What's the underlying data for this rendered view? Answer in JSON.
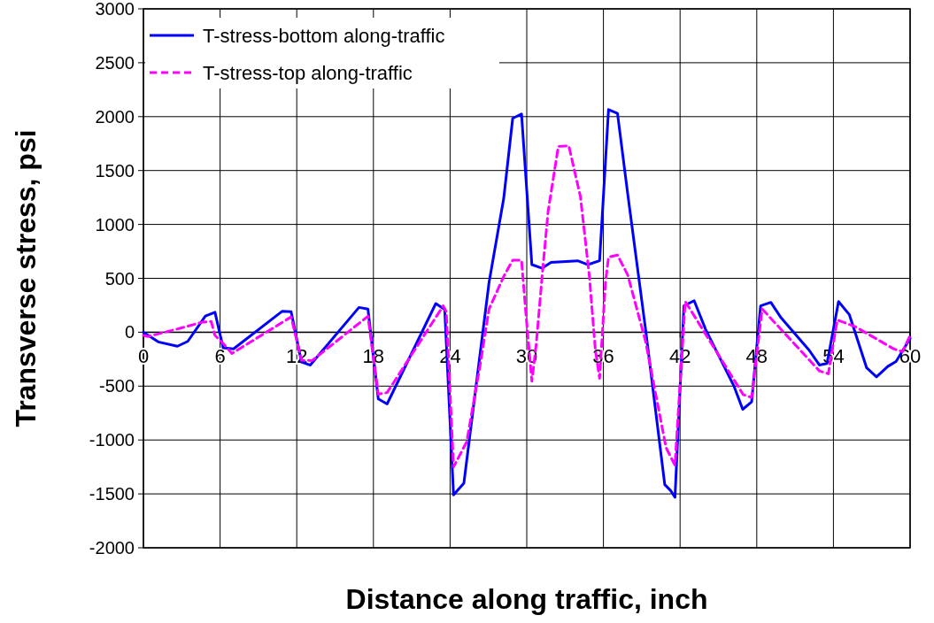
{
  "chart_data": {
    "type": "line",
    "xlabel": "Distance along traffic, inch",
    "ylabel": "Transverse stress, psi",
    "xlim": [
      0,
      60
    ],
    "xticks": [
      0,
      6,
      12,
      18,
      24,
      30,
      36,
      42,
      48,
      54,
      60
    ],
    "ylim": [
      -2000,
      3000
    ],
    "yticks": [
      -2000,
      -1500,
      -1000,
      -500,
      0,
      500,
      1000,
      1500,
      2000,
      2500,
      3000
    ],
    "grid": true,
    "legend": "top left",
    "series": [
      {
        "name": "T-stress-bottom along-traffic",
        "color": "#0000ff",
        "line_style": "solid",
        "x": [
          0,
          1.16,
          2.66,
          3.47,
          4.85,
          5.6,
          6.24,
          7.05,
          10.87,
          11.56,
          12.37,
          13.06,
          16.87,
          17.57,
          18.38,
          19.07,
          22.88,
          23.58,
          24.27,
          25.08,
          27.05,
          28.2,
          28.9,
          29.59,
          30.4,
          31.2,
          31.9,
          33.98,
          34.79,
          35.7,
          36.4,
          37.1,
          37.9,
          39.3,
          40.8,
          41.26,
          41.6,
          42.3,
          43.1,
          44.0,
          46.2,
          46.9,
          47.6,
          48.3,
          49.1,
          49.9,
          52.1,
          52.9,
          53.5,
          54.4,
          55.25,
          56.6,
          57.37,
          58.25,
          58.9,
          60
        ],
        "values": [
          0,
          -90,
          -130,
          -85,
          150,
          185,
          -145,
          -155,
          195,
          190,
          -277,
          -305,
          230,
          215,
          -619,
          -666,
          266,
          211,
          -1510,
          -1400,
          463,
          1244,
          1984,
          2025,
          627,
          594,
          647,
          663,
          627,
          663,
          2066,
          2030,
          1285,
          25,
          -1414,
          -1469,
          -1532,
          244,
          293,
          25,
          -496,
          -715,
          -647,
          244,
          277,
          134,
          -167,
          -304,
          -290,
          285,
          162,
          -331,
          -414,
          -318,
          -271,
          -58
        ]
      },
      {
        "name": "T-stress-top along-traffic",
        "color": "#ff00ff",
        "line_style": "dashed",
        "x": [
          0,
          0.35,
          2.98,
          4.6,
          5.3,
          5.6,
          6.2,
          6.93,
          11.56,
          12.37,
          13.2,
          17.57,
          18.38,
          19.07,
          23.46,
          23.7,
          24.27,
          25.3,
          26.35,
          27.05,
          28.2,
          28.9,
          29.59,
          29.94,
          30.4,
          30.74,
          31.2,
          31.67,
          32.47,
          33.29,
          34.2,
          34.9,
          35.37,
          35.7,
          36.16,
          36.4,
          37.1,
          37.9,
          39.3,
          40.9,
          41.6,
          42.4,
          42.77,
          46.93,
          47.6,
          48.42,
          52.9,
          53.6,
          54.3,
          55.7,
          58.7,
          59.4,
          60
        ],
        "values": [
          -30,
          -40,
          40,
          93,
          100,
          -30,
          -100,
          -197,
          142,
          -260,
          -263,
          148,
          -575,
          -560,
          244,
          189,
          -1250,
          -1017,
          -304,
          216,
          518,
          668,
          668,
          162,
          -455,
          -113,
          518,
          1120,
          1724,
          1729,
          1258,
          518,
          -167,
          -427,
          463,
          696,
          715,
          532,
          -85,
          -1071,
          -1235,
          285,
          216,
          -578,
          -606,
          216,
          -359,
          -386,
          113,
          52,
          -154,
          -181,
          -30
        ]
      }
    ]
  }
}
